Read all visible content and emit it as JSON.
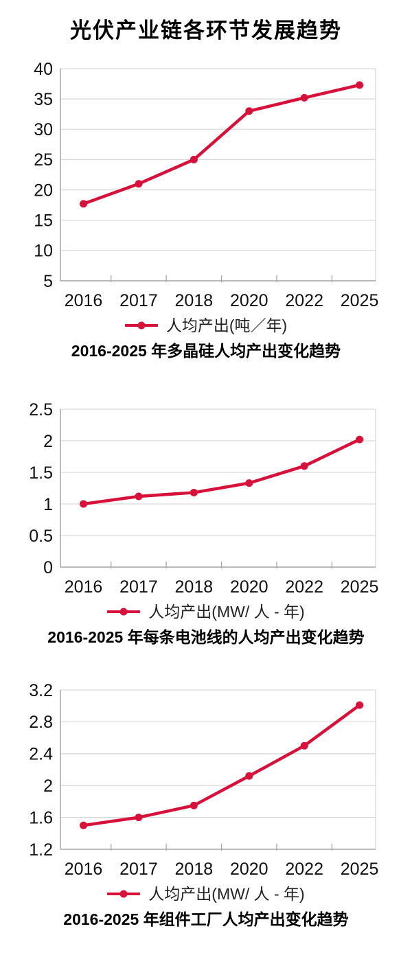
{
  "page_title": "光伏产业链各环节发展趋势",
  "colors": {
    "line": "#d8113a",
    "grid": "#d9d9d9",
    "axis": "#a6a6a6",
    "text": "#111111"
  },
  "chart_data": [
    {
      "type": "line",
      "categories": [
        "2016",
        "2017",
        "2018",
        "2020",
        "2022",
        "2025"
      ],
      "series": [
        {
          "name": "人均产出(吨／年)",
          "values": [
            17.7,
            21,
            25,
            33,
            35.2,
            37.3
          ]
        }
      ],
      "caption": "2016-2025 年多晶硅人均产出变化趋势",
      "xlabel": "",
      "ylabel": "",
      "ylim": [
        5,
        40
      ],
      "yticks": [
        "5",
        "10",
        "15",
        "20",
        "25",
        "30",
        "35",
        "40"
      ],
      "grid": true,
      "legend_position": "bottom"
    },
    {
      "type": "line",
      "categories": [
        "2016",
        "2017",
        "2018",
        "2020",
        "2022",
        "2025"
      ],
      "series": [
        {
          "name": "人均产出(MW/ 人 - 年)",
          "values": [
            1.0,
            1.12,
            1.18,
            1.33,
            1.6,
            2.02
          ]
        }
      ],
      "caption": "2016-2025 年每条电池线的人均产出变化趋势",
      "xlabel": "",
      "ylabel": "",
      "ylim": [
        0,
        2.5
      ],
      "yticks": [
        "0",
        "0.5",
        "1",
        "1.5",
        "2",
        "2.5"
      ],
      "grid": true,
      "legend_position": "bottom"
    },
    {
      "type": "line",
      "categories": [
        "2016",
        "2017",
        "2018",
        "2020",
        "2022",
        "2025"
      ],
      "series": [
        {
          "name": "人均产出(MW/ 人 - 年)",
          "values": [
            1.5,
            1.6,
            1.75,
            2.12,
            2.5,
            3.01
          ]
        }
      ],
      "caption": "2016-2025 年组件工厂人均产出变化趋势",
      "xlabel": "",
      "ylabel": "",
      "ylim": [
        1.2,
        3.2
      ],
      "yticks": [
        "1.2",
        "1.6",
        "2",
        "2.4",
        "2.8",
        "3.2"
      ],
      "grid": true,
      "legend_position": "bottom"
    }
  ]
}
